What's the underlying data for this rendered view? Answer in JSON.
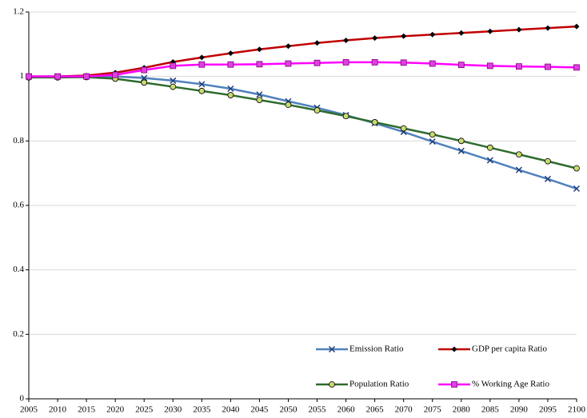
{
  "chart_data": {
    "type": "line",
    "x": [
      2005,
      2010,
      2015,
      2020,
      2025,
      2030,
      2035,
      2040,
      2045,
      2050,
      2055,
      2060,
      2065,
      2070,
      2075,
      2080,
      2085,
      2090,
      2095,
      2100
    ],
    "xlim": [
      2005,
      2100
    ],
    "xticks": [
      2005,
      2010,
      2015,
      2020,
      2025,
      2030,
      2035,
      2040,
      2045,
      2050,
      2055,
      2060,
      2065,
      2070,
      2075,
      2080,
      2085,
      2090,
      2095,
      2100
    ],
    "ylim": [
      0,
      1.2
    ],
    "yticks": [
      0,
      0.2,
      0.4,
      0.6,
      0.8,
      1,
      1.2
    ],
    "grid": true,
    "legend": "lower right",
    "series": [
      {
        "name": "Emission Ratio",
        "color": "#4f81bd",
        "marker": "x",
        "marker_color": "#1f3f7a",
        "values": [
          1.0,
          1.0,
          1.0,
          1.0,
          0.995,
          0.987,
          0.976,
          0.962,
          0.944,
          0.923,
          0.903,
          0.88,
          0.855,
          0.828,
          0.798,
          0.769,
          0.74,
          0.71,
          0.682,
          0.652
        ]
      },
      {
        "name": "GDP per capita Ratio",
        "color": "#c00000",
        "marker": "diamond",
        "marker_color": "#000000",
        "values": [
          1.0,
          1.0,
          1.003,
          1.012,
          1.027,
          1.045,
          1.059,
          1.072,
          1.084,
          1.094,
          1.104,
          1.112,
          1.119,
          1.125,
          1.13,
          1.135,
          1.14,
          1.145,
          1.15,
          1.155
        ]
      },
      {
        "name": "Population Ratio",
        "color": "#2e6b2e",
        "marker": "circle",
        "marker_color": "#c8d96f",
        "values": [
          0.997,
          0.997,
          0.998,
          0.993,
          0.981,
          0.968,
          0.955,
          0.942,
          0.927,
          0.912,
          0.895,
          0.877,
          0.858,
          0.839,
          0.82,
          0.8,
          0.779,
          0.758,
          0.737,
          0.715
        ]
      },
      {
        "name": "% Working Age Ratio",
        "color": "#ff00ff",
        "marker": "square",
        "marker_color": "#e040e0",
        "values": [
          1.0,
          1.0,
          1.0,
          1.005,
          1.02,
          1.033,
          1.037,
          1.037,
          1.038,
          1.04,
          1.042,
          1.044,
          1.044,
          1.043,
          1.04,
          1.036,
          1.033,
          1.031,
          1.03,
          1.028
        ]
      }
    ]
  }
}
